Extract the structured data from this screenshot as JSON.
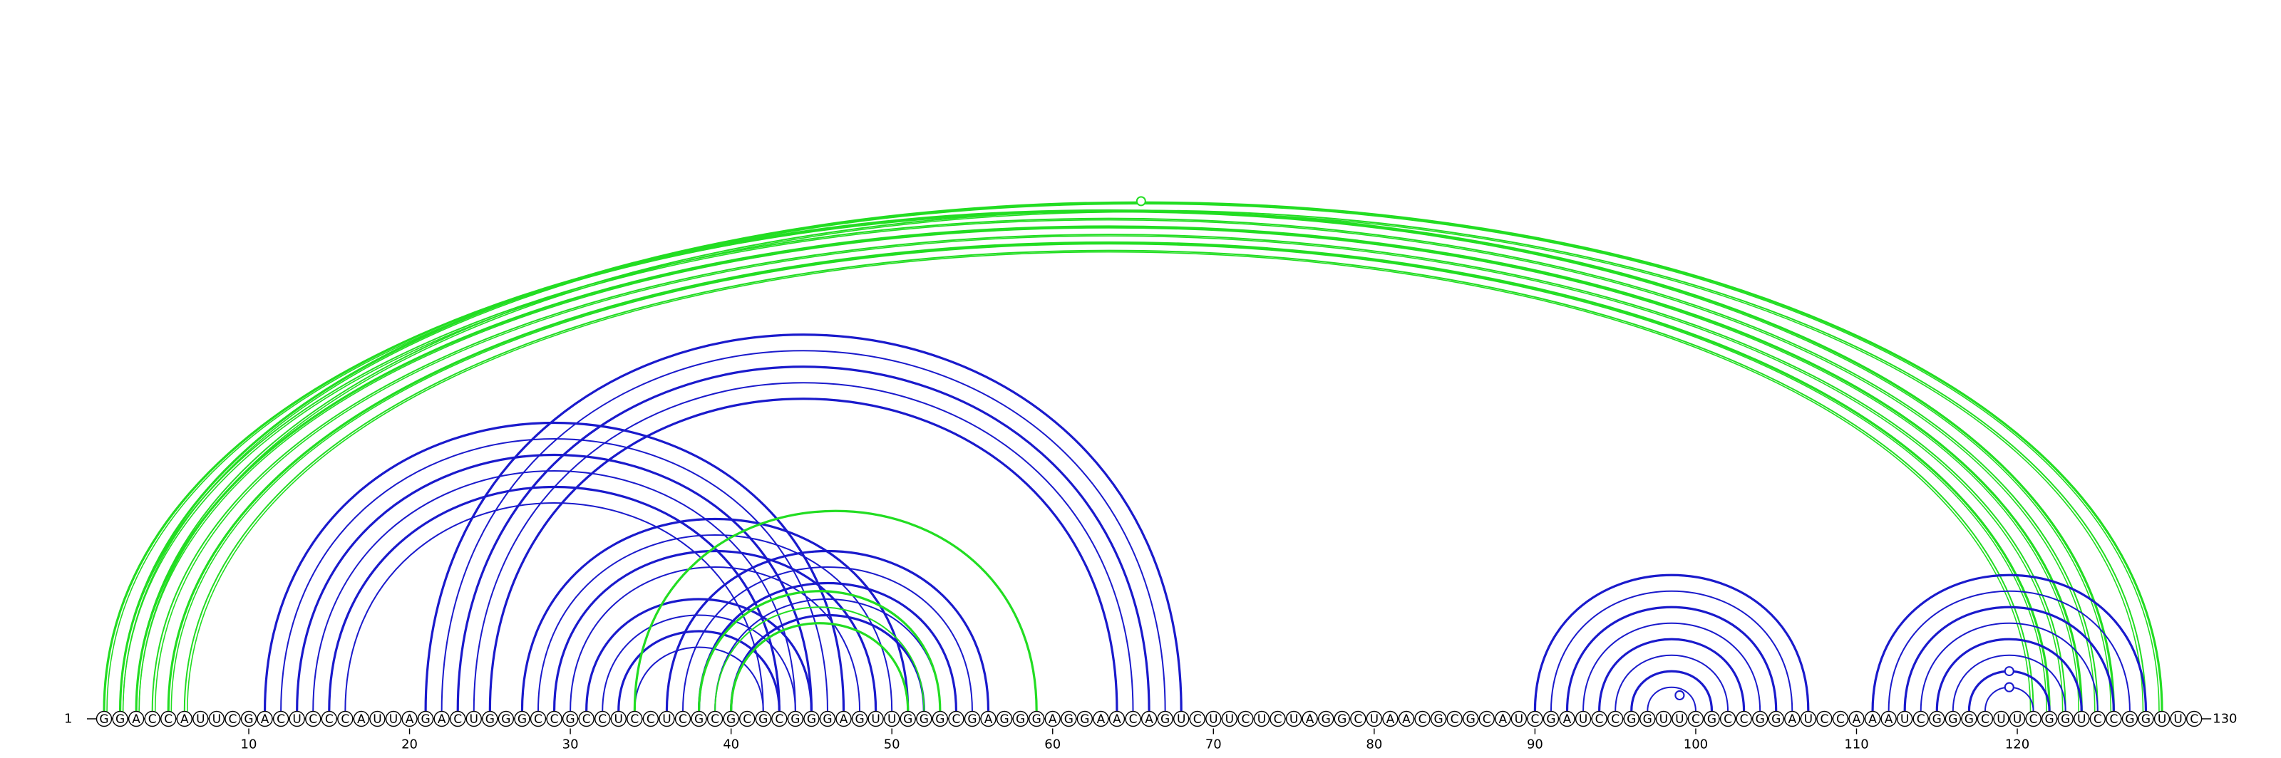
{
  "sequence": "GGACCAUUCGACUCCCAUUAGACUGGGCCGCCUCCUCGCGCGCGGGAGUUGGGCGAGGGAGGAACAGUCUUCUCUAGGCUAACGCGCAUCGAUCCGGUUCGCCGGAUCCAAAUCGGGCUUCGGUCCGGUUC",
  "start_label": "1",
  "end_label": "130",
  "position_ticks": [
    10,
    20,
    30,
    40,
    50,
    60,
    70,
    80,
    90,
    100,
    110,
    120
  ],
  "colors": {
    "green": "#22dd22",
    "blue": "#1a1acc",
    "nucleotide_outline": "#000000"
  },
  "arc_groups": [
    {
      "color": "green",
      "pairs": [
        [
          1,
          126
        ],
        [
          2,
          125
        ],
        [
          3,
          124
        ],
        [
          4,
          123
        ],
        [
          5,
          122
        ],
        [
          6,
          121
        ]
      ],
      "double_outer": true
    },
    {
      "color": "green",
      "pairs": [
        [
          2,
          129
        ],
        [
          3,
          128
        ]
      ],
      "marker_on": [
        2,
        129
      ]
    },
    {
      "color": "blue",
      "pairs": [
        [
          11,
          47
        ],
        [
          12,
          46
        ],
        [
          13,
          45
        ],
        [
          14,
          44
        ],
        [
          15,
          43
        ],
        [
          16,
          42
        ]
      ]
    },
    {
      "color": "blue",
      "pairs": [
        [
          21,
          68
        ],
        [
          22,
          67
        ],
        [
          23,
          66
        ],
        [
          24,
          65
        ],
        [
          25,
          64
        ]
      ]
    },
    {
      "color": "blue",
      "pairs": [
        [
          27,
          51
        ],
        [
          28,
          50
        ],
        [
          29,
          49
        ],
        [
          30,
          48
        ]
      ]
    },
    {
      "color": "blue",
      "pairs": [
        [
          31,
          45
        ],
        [
          32,
          44
        ],
        [
          33,
          43
        ],
        [
          34,
          42
        ]
      ]
    },
    {
      "color": "blue",
      "pairs": [
        [
          36,
          56
        ],
        [
          37,
          55
        ],
        [
          38,
          54
        ],
        [
          39,
          53
        ],
        [
          40,
          52
        ]
      ]
    },
    {
      "color": "green",
      "pairs": [
        [
          34,
          59
        ]
      ]
    },
    {
      "color": "green",
      "pairs": [
        [
          38,
          53
        ],
        [
          39,
          52
        ],
        [
          40,
          51
        ]
      ]
    },
    {
      "color": "blue",
      "pairs": [
        [
          90,
          107
        ],
        [
          91,
          106
        ],
        [
          92,
          105
        ],
        [
          93,
          104
        ],
        [
          94,
          103
        ],
        [
          95,
          102
        ],
        [
          96,
          101
        ],
        [
          97,
          100
        ]
      ],
      "marker_on": [
        98,
        100
      ]
    },
    {
      "color": "blue",
      "pairs": [
        [
          111,
          128
        ],
        [
          112,
          127
        ],
        [
          113,
          126
        ],
        [
          114,
          125
        ],
        [
          115,
          124
        ],
        [
          116,
          123
        ],
        [
          117,
          122
        ],
        [
          118,
          121
        ]
      ],
      "marker_on": [
        118,
        121
      ]
    }
  ],
  "markers": [
    {
      "color": "blue",
      "at_pair": [
        117,
        122
      ]
    },
    {
      "color": "blue",
      "at_pair": [
        118,
        121
      ]
    },
    {
      "color": "blue",
      "at_pair": [
        98,
        100
      ]
    }
  ]
}
